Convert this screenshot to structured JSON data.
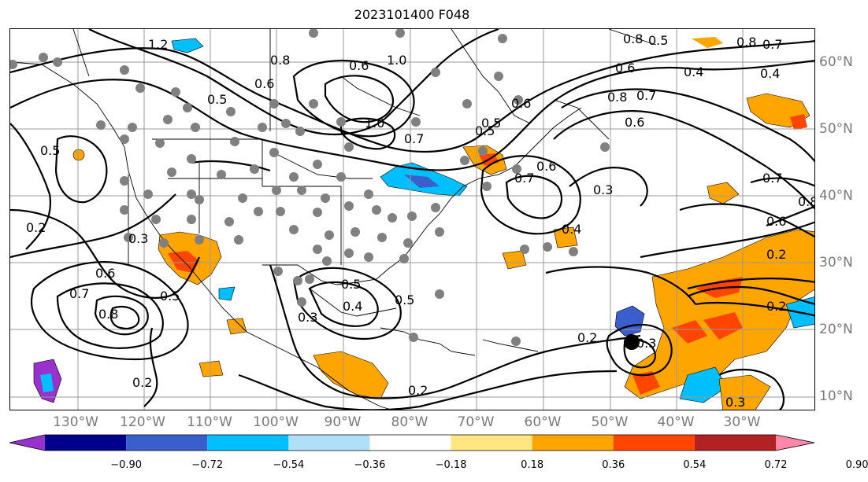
{
  "title": "2023101400 F048",
  "lon_labels": [
    "130°W",
    "120°W",
    "110°W",
    "100°W",
    "90°W",
    "80°W",
    "70°W",
    "60°W",
    "50°W",
    "40°W",
    "30°W"
  ],
  "lat_labels": [
    "60°N",
    "50°N",
    "40°N",
    "30°N",
    "20°N",
    "10°N"
  ],
  "colorbar": {
    "ticks": [
      "−0.90",
      "−0.72",
      "−0.54",
      "−0.36",
      "−0.18",
      "0.18",
      "0.36",
      "0.54",
      "0.72",
      "0.90"
    ],
    "colors": [
      "#9932cc",
      "#00008b",
      "#3a5fcd",
      "#00bfff",
      "#b0e0f8",
      "#ffffff",
      "#ffe680",
      "#ffa500",
      "#ff4500",
      "#b22222",
      "#ff88aa"
    ]
  },
  "contour_labels": [
    "1.2",
    "0.8",
    "0.6",
    "1.0",
    "0.5",
    "0.6",
    "0.5",
    "0.8",
    "0.7",
    "0.5",
    "0.8",
    "0.4",
    "0.6",
    "0.7",
    "0.6",
    "0.8",
    "0.4",
    "0.6",
    "0.7",
    "1.0",
    "0.5",
    "0.7",
    "0.6",
    "0.3",
    "0.7",
    "0.8",
    "0.6",
    "0.4",
    "0.2",
    "0.5",
    "0.3",
    "0.6",
    "0.7",
    "0.8",
    "0.5",
    "0.2",
    "0.5",
    "0.4",
    "0.5",
    "0.3",
    "0.2",
    "0.2",
    "0.3",
    "0.2",
    "0.3",
    "0.2"
  ],
  "marker_colors": {
    "station": "#808080",
    "storm": "#000000"
  }
}
